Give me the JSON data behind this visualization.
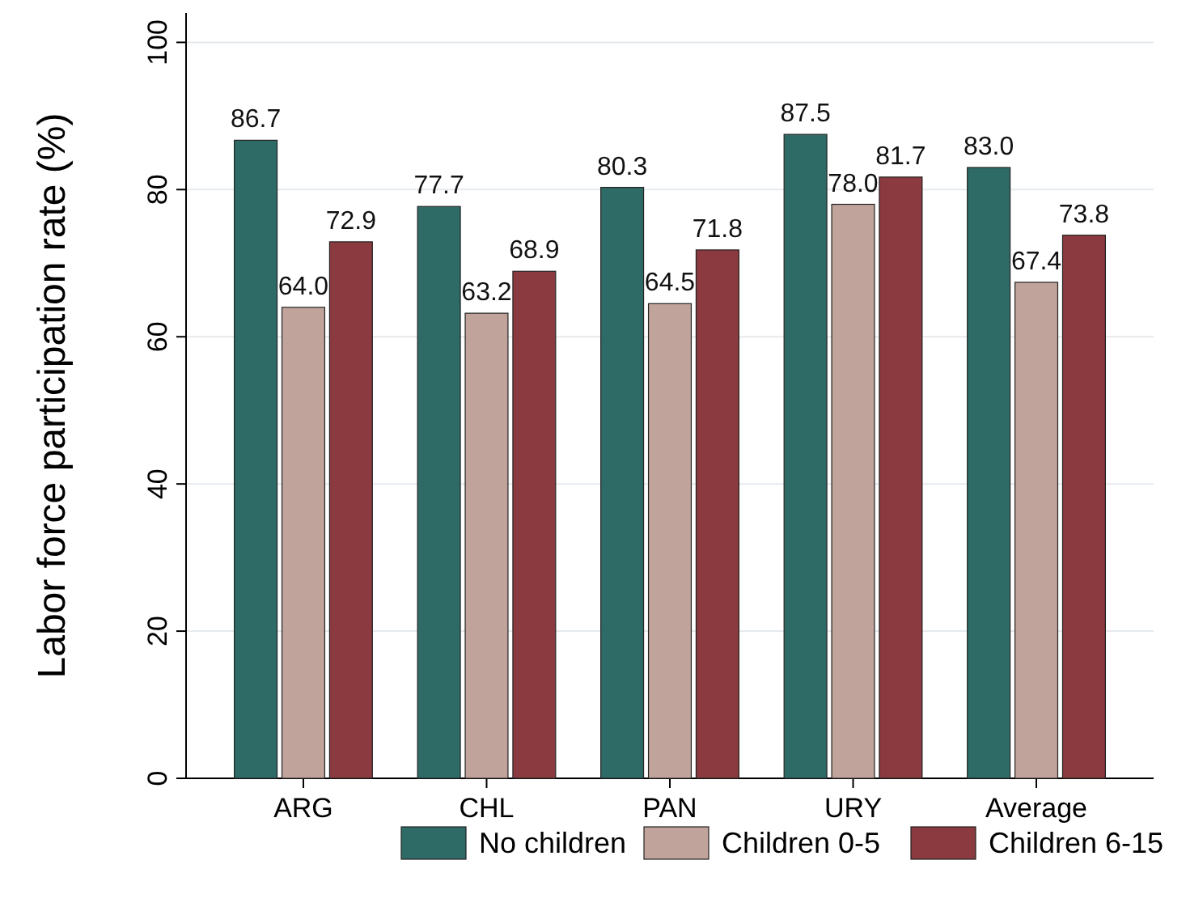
{
  "chart_data": {
    "type": "bar",
    "ylabel": "Labor force participation rate (%)",
    "categories": [
      "ARG",
      "CHL",
      "PAN",
      "URY",
      "Average"
    ],
    "series": [
      {
        "name": "No children",
        "color": "#2f6b66",
        "values": [
          86.7,
          77.7,
          80.3,
          87.5,
          83.0
        ],
        "value_labels": [
          "86.7",
          "77.7",
          "80.3",
          "87.5",
          "83.0"
        ]
      },
      {
        "name": "Children 0-5",
        "color": "#c0a39a",
        "values": [
          64.0,
          63.2,
          64.5,
          78.0,
          67.4
        ],
        "value_labels": [
          "64.0",
          "63.2",
          "64.5",
          "78.0",
          "67.4"
        ]
      },
      {
        "name": "Children 6-15",
        "color": "#8b3a3f",
        "values": [
          72.9,
          68.9,
          71.8,
          81.7,
          73.8
        ],
        "value_labels": [
          "72.9",
          "68.9",
          "71.8",
          "81.7",
          "73.8"
        ]
      }
    ],
    "ylim": [
      0,
      104
    ],
    "yticks": [
      0,
      20,
      40,
      60,
      80,
      100
    ],
    "grid": "y",
    "legend": "bottom"
  }
}
